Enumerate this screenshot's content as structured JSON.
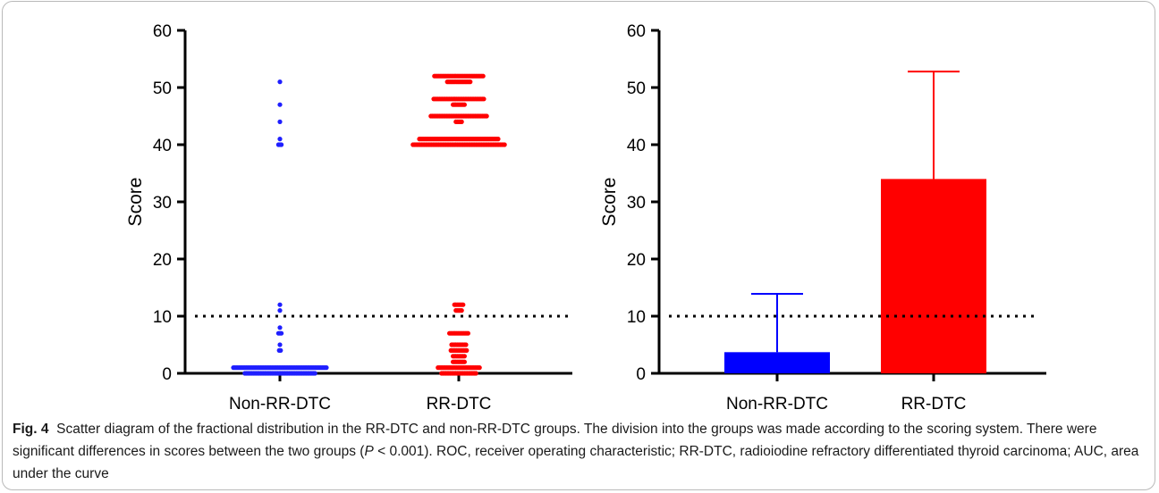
{
  "chart_data": [
    {
      "type": "scatter",
      "ylabel": "Score",
      "ylim": [
        0,
        60
      ],
      "yticks": [
        0,
        10,
        20,
        30,
        40,
        50,
        60
      ],
      "categories": [
        "Non-RR-DTC",
        "RR-DTC"
      ],
      "reference_line": 10,
      "colors": [
        "#1f1fff",
        "#ff0000"
      ],
      "series": [
        {
          "values": [
            0,
            0,
            0,
            0,
            0,
            0,
            0,
            0,
            0,
            0,
            0,
            0,
            0,
            0,
            0,
            0,
            0,
            0,
            0,
            0,
            0,
            0,
            0,
            0,
            0,
            0,
            0,
            0,
            0,
            0,
            0,
            0,
            0,
            0,
            0,
            0,
            0,
            0,
            0,
            0,
            0,
            0,
            0,
            0,
            0,
            0,
            0,
            0,
            0,
            0,
            1,
            1,
            1,
            1,
            1,
            1,
            1,
            1,
            1,
            1,
            1,
            1,
            1,
            1,
            1,
            1,
            1,
            1,
            1,
            1,
            1,
            1,
            1,
            1,
            1,
            1,
            1,
            1,
            1,
            1,
            1,
            1,
            1,
            1,
            1,
            1,
            1,
            1,
            1,
            1,
            1,
            1,
            1,
            1,
            1,
            1,
            1,
            1,
            1,
            1,
            1,
            1,
            1,
            1,
            1,
            1,
            1,
            1,
            1,
            1,
            1,
            1,
            1,
            1,
            1,
            1,
            4,
            4,
            5,
            7,
            7,
            7,
            8,
            11,
            12,
            40,
            40,
            40,
            41,
            44,
            47,
            51
          ]
        },
        {
          "values": [
            0,
            0,
            0,
            0,
            0,
            0,
            0,
            0,
            0,
            0,
            0,
            0,
            0,
            0,
            0,
            0,
            0,
            0,
            0,
            0,
            0,
            0,
            0,
            0,
            0,
            1,
            1,
            1,
            1,
            1,
            1,
            1,
            1,
            1,
            1,
            1,
            1,
            1,
            1,
            1,
            1,
            1,
            1,
            1,
            1,
            1,
            1,
            1,
            1,
            1,
            1,
            1,
            1,
            1,
            1,
            2,
            2,
            2,
            2,
            2,
            2,
            2,
            2,
            2,
            3,
            3,
            3,
            3,
            3,
            3,
            3,
            3,
            3,
            4,
            4,
            4,
            4,
            4,
            4,
            4,
            4,
            4,
            4,
            4,
            4,
            5,
            5,
            5,
            5,
            5,
            5,
            5,
            5,
            5,
            5,
            5,
            7,
            7,
            7,
            7,
            7,
            7,
            7,
            7,
            7,
            7,
            7,
            7,
            7,
            7,
            11,
            11,
            11,
            11,
            11,
            12,
            12,
            12,
            12,
            12,
            12,
            12,
            40,
            40,
            40,
            40,
            40,
            40,
            40,
            40,
            40,
            40,
            40,
            40,
            40,
            40,
            40,
            40,
            40,
            40,
            40,
            40,
            40,
            40,
            40,
            40,
            40,
            40,
            40,
            40,
            40,
            40,
            40,
            40,
            40,
            40,
            40,
            40,
            40,
            40,
            40,
            40,
            40,
            40,
            40,
            40,
            40,
            40,
            40,
            40,
            40,
            40,
            40,
            40,
            40,
            40,
            40,
            40,
            40,
            40,
            40,
            40,
            40,
            40,
            40,
            40,
            40,
            41,
            41,
            41,
            41,
            41,
            41,
            41,
            41,
            41,
            41,
            41,
            41,
            41,
            41,
            41,
            41,
            41,
            41,
            41,
            41,
            41,
            41,
            41,
            41,
            41,
            41,
            41,
            41,
            41,
            41,
            41,
            41,
            41,
            41,
            41,
            41,
            41,
            41,
            41,
            41,
            41,
            41,
            41,
            41,
            41,
            41,
            41,
            41,
            41,
            41,
            41,
            41,
            41,
            41,
            41,
            41,
            44,
            44,
            44,
            44,
            44,
            45,
            45,
            45,
            45,
            45,
            45,
            45,
            45,
            45,
            45,
            45,
            45,
            45,
            45,
            45,
            45,
            45,
            45,
            45,
            45,
            45,
            45,
            45,
            45,
            45,
            45,
            45,
            45,
            45,
            45,
            45,
            45,
            45,
            45,
            45,
            45,
            45,
            45,
            45,
            45,
            47,
            47,
            47,
            47,
            47,
            47,
            47,
            47,
            47,
            48,
            48,
            48,
            48,
            48,
            48,
            48,
            48,
            48,
            48,
            48,
            48,
            48,
            48,
            48,
            48,
            48,
            48,
            48,
            48,
            48,
            48,
            48,
            48,
            48,
            48,
            48,
            48,
            48,
            48,
            48,
            48,
            48,
            48,
            48,
            48,
            51,
            51,
            51,
            51,
            51,
            51,
            51,
            51,
            51,
            51,
            51,
            51,
            51,
            51,
            51,
            51,
            51,
            52,
            52,
            52,
            52,
            52,
            52,
            52,
            52,
            52,
            52,
            52,
            52,
            52,
            52,
            52,
            52,
            52,
            52,
            52,
            52,
            52,
            52,
            52,
            52,
            52,
            52,
            52,
            52,
            52,
            52,
            52,
            52,
            52,
            52,
            52
          ]
        }
      ]
    },
    {
      "type": "bar",
      "ylabel": "Score",
      "ylim": [
        0,
        60
      ],
      "yticks": [
        0,
        10,
        20,
        30,
        40,
        50,
        60
      ],
      "categories": [
        "Non-RR-DTC",
        "RR-DTC"
      ],
      "values": [
        3.7,
        34
      ],
      "error_upper": [
        13.9,
        52.8
      ],
      "reference_line": 10,
      "colors": [
        "#0000ff",
        "#ff0000"
      ]
    }
  ],
  "caption": {
    "label": "Fig. 4",
    "text_before_p": "Scatter diagram of the fractional distribution in the RR-DTC and non-RR-DTC groups. The division into the groups was made according to the scoring system. There were significant differences in scores between the two groups (",
    "p_symbol": "P",
    "text_after_p": " < 0.001). ROC, receiver operating characteristic; RR-DTC, radioiodine refractory differentiated thyroid carcinoma; AUC, area under the curve"
  }
}
